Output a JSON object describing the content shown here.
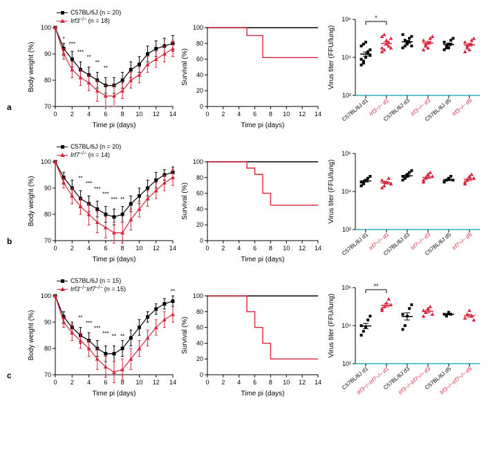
{
  "colors": {
    "black": "#000000",
    "red": "#d6253b",
    "teal": "#2db2c1",
    "bg": "#ffffff"
  },
  "rows": [
    {
      "letter": "a",
      "legend": {
        "black": "C57BL/6J (n = 20)",
        "red_pre": "Irf3",
        "red_post": " (n = 18)",
        "red_sup": "−/−"
      },
      "weight": {
        "ylabel": "Body weight (%)",
        "xlabel": "Time pi (days)",
        "ylim": [
          70,
          100
        ],
        "yticks": [
          70,
          80,
          90,
          100
        ],
        "xlim": [
          0,
          14
        ],
        "xticks": [
          0,
          2,
          4,
          6,
          8,
          10,
          12,
          14
        ],
        "black": [
          100,
          92,
          88,
          84,
          82,
          80,
          78,
          78,
          80,
          84,
          86,
          90,
          92,
          93,
          94
        ],
        "red": [
          100,
          90,
          84,
          81,
          79,
          76,
          74,
          74,
          76,
          80,
          82,
          86,
          88,
          90,
          92
        ],
        "black_err": [
          0,
          2,
          3,
          3,
          3,
          3,
          3,
          3,
          3,
          3,
          3,
          3,
          3,
          3,
          3
        ],
        "red_err": [
          0,
          2,
          3,
          3,
          3,
          4,
          4,
          4,
          3,
          3,
          3,
          3,
          3,
          3,
          3
        ],
        "sigs": [
          {
            "x": 1,
            "y": 95,
            "t": "*"
          },
          {
            "x": 2,
            "y": 93,
            "t": "***"
          },
          {
            "x": 3,
            "y": 90,
            "t": "***"
          },
          {
            "x": 4,
            "y": 88,
            "t": "**"
          },
          {
            "x": 5,
            "y": 86,
            "t": "**"
          },
          {
            "x": 6,
            "y": 84,
            "t": "**"
          }
        ]
      },
      "survival": {
        "ylabel": "Survival (%)",
        "xlabel": "Time pi (days)",
        "ylim": [
          0,
          100
        ],
        "yticks": [
          0,
          20,
          40,
          60,
          80,
          100
        ],
        "xlim": [
          0,
          14
        ],
        "xticks": [
          0,
          2,
          4,
          6,
          8,
          10,
          12,
          14
        ],
        "black": [
          [
            -0.1,
            100
          ],
          [
            14,
            100
          ]
        ],
        "red": [
          [
            0,
            100
          ],
          [
            5,
            100
          ],
          [
            5,
            90
          ],
          [
            7,
            90
          ],
          [
            7,
            62
          ],
          [
            14,
            62
          ]
        ]
      },
      "titer": {
        "ylabel": "Virus titer (FFU/lung)",
        "ylim": [
          2,
          6
        ],
        "yticks": [
          2,
          4,
          6
        ],
        "yticklabels": [
          "10²",
          "10⁴",
          "10⁶"
        ],
        "threshold": 2,
        "groups": [
          {
            "label": "C57BL/6J d1",
            "color": "black",
            "marker": "sq",
            "values": [
              3.6,
              3.7,
              4.0,
              4.2,
              4.4,
              4.6,
              4.7,
              4.8,
              4.3,
              4.1,
              3.9,
              3.8
            ]
          },
          {
            "label": "Irf3−/− d1",
            "color": "red",
            "marker": "tri",
            "values": [
              4.3,
              4.4,
              4.7,
              4.8,
              5.0,
              5.1,
              5.2,
              4.9,
              4.6,
              4.5,
              4.5
            ]
          },
          {
            "label": "C57BL/6J d3",
            "color": "black",
            "marker": "sq",
            "values": [
              4.5,
              4.6,
              4.8,
              5.0,
              5.1,
              5.2,
              4.9,
              4.7,
              4.8,
              4.6
            ]
          },
          {
            "label": "Irf3−/− d3",
            "color": "red",
            "marker": "tri",
            "values": [
              4.4,
              4.6,
              4.8,
              5.0,
              5.1,
              4.9,
              4.7,
              4.5,
              4.8
            ]
          },
          {
            "label": "C57BL/6J d5",
            "color": "black",
            "marker": "sq",
            "values": [
              4.4,
              4.5,
              4.7,
              4.9,
              5.0,
              4.8,
              4.6,
              4.5,
              4.7
            ]
          },
          {
            "label": "Irf3−/− d5",
            "color": "red",
            "marker": "tri",
            "values": [
              4.3,
              4.5,
              4.7,
              4.9,
              5.0,
              4.8,
              4.6,
              4.4,
              4.7
            ]
          }
        ],
        "sigs": [
          {
            "a": 0,
            "b": 1,
            "t": "*"
          }
        ]
      }
    },
    {
      "letter": "b",
      "legend": {
        "black": "C57BL/6J (n = 20)",
        "red_pre": "Irf7",
        "red_post": " (n = 14)",
        "red_sup": "−/−"
      },
      "weight": {
        "ylabel": "Body weight (%)",
        "xlabel": "Time pi (days)",
        "ylim": [
          70,
          100
        ],
        "yticks": [
          70,
          80,
          90,
          100
        ],
        "xlim": [
          0,
          14
        ],
        "xticks": [
          0,
          2,
          4,
          6,
          8,
          10,
          12,
          14
        ],
        "black": [
          100,
          94,
          90,
          86,
          84,
          82,
          80,
          79,
          80,
          84,
          87,
          90,
          93,
          95,
          96
        ],
        "red": [
          100,
          92,
          87,
          83,
          80,
          77,
          75,
          73,
          73,
          78,
          82,
          86,
          89,
          92,
          94
        ],
        "black_err": [
          0,
          2,
          3,
          3,
          3,
          3,
          3,
          3,
          3,
          3,
          3,
          3,
          3,
          2,
          2
        ],
        "red_err": [
          0,
          2,
          3,
          3,
          4,
          4,
          4,
          4,
          4,
          4,
          3,
          3,
          3,
          3,
          3
        ],
        "sigs": [
          {
            "x": 3,
            "y": 93,
            "t": "**"
          },
          {
            "x": 4,
            "y": 91,
            "t": "***"
          },
          {
            "x": 5,
            "y": 89,
            "t": "***"
          },
          {
            "x": 6,
            "y": 87,
            "t": "***"
          },
          {
            "x": 7,
            "y": 85,
            "t": "***"
          },
          {
            "x": 8,
            "y": 85,
            "t": "**"
          }
        ]
      },
      "survival": {
        "ylabel": "Survival (%)",
        "xlabel": "Time pi (days)",
        "ylim": [
          0,
          100
        ],
        "yticks": [
          0,
          20,
          40,
          60,
          80,
          100
        ],
        "xlim": [
          0,
          14
        ],
        "xticks": [
          0,
          2,
          4,
          6,
          8,
          10,
          12,
          14
        ],
        "black": [
          [
            -0.1,
            100
          ],
          [
            14,
            100
          ]
        ],
        "red": [
          [
            0,
            100
          ],
          [
            5,
            100
          ],
          [
            5,
            92
          ],
          [
            6,
            92
          ],
          [
            6,
            84
          ],
          [
            7,
            84
          ],
          [
            7,
            60
          ],
          [
            8,
            60
          ],
          [
            8,
            45
          ],
          [
            14,
            45
          ]
        ]
      },
      "titer": {
        "ylabel": "Virus titer (FFU/lung)",
        "ylim": [
          2,
          6
        ],
        "yticks": [
          2,
          4,
          6
        ],
        "yticklabels": [
          "10²",
          "10⁴",
          "10⁶"
        ],
        "threshold": 2,
        "groups": [
          {
            "label": "C57BL/6J d1",
            "color": "black",
            "marker": "sq",
            "values": [
              4.3,
              4.4,
              4.6,
              4.7,
              4.8,
              4.5,
              4.5,
              4.6
            ]
          },
          {
            "label": "Irf7−/− d1",
            "color": "red",
            "marker": "tri",
            "values": [
              4.2,
              4.3,
              4.5,
              4.7,
              4.4,
              4.6,
              4.5
            ]
          },
          {
            "label": "C57BL/6J d3",
            "color": "black",
            "marker": "sq",
            "values": [
              4.6,
              4.7,
              4.9,
              5.0,
              5.1,
              4.8,
              4.7,
              4.8
            ]
          },
          {
            "label": "Irf7−/− d3",
            "color": "red",
            "marker": "tri",
            "values": [
              4.5,
              4.7,
              4.9,
              5.0,
              4.8,
              4.6,
              4.7
            ]
          },
          {
            "label": "C57BL/6J d5",
            "color": "black",
            "marker": "sq",
            "values": [
              4.5,
              4.6,
              4.7,
              4.8,
              4.6,
              4.5
            ]
          },
          {
            "label": "Irf7−/− d5",
            "color": "red",
            "marker": "tri",
            "values": [
              4.4,
              4.6,
              4.8,
              4.9,
              4.7,
              4.5,
              4.6
            ]
          }
        ],
        "sigs": []
      }
    },
    {
      "letter": "c",
      "legend": {
        "black": "C57BL/6J (n = 15)",
        "red_pre": "Irf3",
        "red_mid": "Irf7",
        "red_post": " (n = 15)",
        "red_sup": "−/−"
      },
      "weight": {
        "ylabel": "Body weight (%)",
        "xlabel": "Time pi (days)",
        "ylim": [
          70,
          100
        ],
        "yticks": [
          70,
          80,
          90,
          100
        ],
        "xlim": [
          0,
          14
        ],
        "xticks": [
          0,
          2,
          4,
          6,
          8,
          10,
          12,
          14
        ],
        "black": [
          100,
          92,
          88,
          85,
          83,
          80,
          78,
          78,
          80,
          84,
          88,
          92,
          95,
          97,
          98
        ],
        "red": [
          100,
          90,
          86,
          83,
          80,
          76,
          73,
          71,
          72,
          76,
          80,
          84,
          88,
          91,
          93
        ],
        "black_err": [
          0,
          2,
          2,
          3,
          3,
          3,
          3,
          3,
          3,
          3,
          3,
          2,
          2,
          2,
          2
        ],
        "red_err": [
          0,
          2,
          3,
          3,
          3,
          4,
          4,
          4,
          4,
          4,
          3,
          3,
          3,
          3,
          3
        ],
        "sigs": [
          {
            "x": 3,
            "y": 91,
            "t": "**"
          },
          {
            "x": 4,
            "y": 89,
            "t": "***"
          },
          {
            "x": 5,
            "y": 87,
            "t": "***"
          },
          {
            "x": 6,
            "y": 85,
            "t": "***"
          },
          {
            "x": 7,
            "y": 84,
            "t": "**"
          },
          {
            "x": 8,
            "y": 84,
            "t": "**"
          },
          {
            "x": 14,
            "y": 101,
            "t": "**"
          }
        ]
      },
      "survival": {
        "ylabel": "Survival (%)",
        "xlabel": "Time pi (days)",
        "ylim": [
          0,
          100
        ],
        "yticks": [
          0,
          20,
          40,
          60,
          80,
          100
        ],
        "xlim": [
          0,
          14
        ],
        "xticks": [
          0,
          2,
          4,
          6,
          8,
          10,
          12,
          14
        ],
        "black": [
          [
            -0.1,
            100
          ],
          [
            14,
            100
          ]
        ],
        "red": [
          [
            0,
            100
          ],
          [
            5,
            100
          ],
          [
            5,
            80
          ],
          [
            6,
            80
          ],
          [
            6,
            60
          ],
          [
            7,
            60
          ],
          [
            7,
            40
          ],
          [
            8,
            40
          ],
          [
            8,
            20
          ],
          [
            14,
            20
          ]
        ]
      },
      "titer": {
        "ylabel": "Virus titer (FFU/lung)",
        "ylim": [
          2,
          6
        ],
        "yticks": [
          2,
          4,
          6
        ],
        "yticklabels": [
          "10²",
          "10⁴",
          "10⁶"
        ],
        "threshold": 2,
        "groups": [
          {
            "label": "C57BL/6J d1",
            "color": "black",
            "marker": "sq",
            "values": [
              3.5,
              3.7,
              3.9,
              4.3,
              4.5,
              4.0
            ]
          },
          {
            "label": "Irf3−/−Irf7−/− d1",
            "color": "red",
            "marker": "tri",
            "values": [
              4.8,
              5.0,
              5.2,
              5.4,
              5.1,
              4.9
            ]
          },
          {
            "label": "C57BL/6J d3",
            "color": "black",
            "marker": "sq",
            "values": [
              3.8,
              4.0,
              4.5,
              4.9,
              5.1,
              4.6
            ]
          },
          {
            "label": "Irf3−/−Irf7−/− d3",
            "color": "red",
            "marker": "tri",
            "values": [
              4.5,
              4.7,
              4.9,
              5.0,
              4.6,
              4.8
            ]
          },
          {
            "label": "C57BL/6J d5",
            "color": "black",
            "marker": "sq",
            "values": [
              4.6,
              4.5,
              4.7,
              4.6
            ]
          },
          {
            "label": "Irf3−/−Irf7−/− d5",
            "color": "red",
            "marker": "tri",
            "values": [
              4.4,
              4.6,
              4.8,
              4.5,
              4.3
            ]
          }
        ],
        "sigs": [
          {
            "a": 0,
            "b": 1,
            "t": "**"
          }
        ]
      }
    }
  ]
}
